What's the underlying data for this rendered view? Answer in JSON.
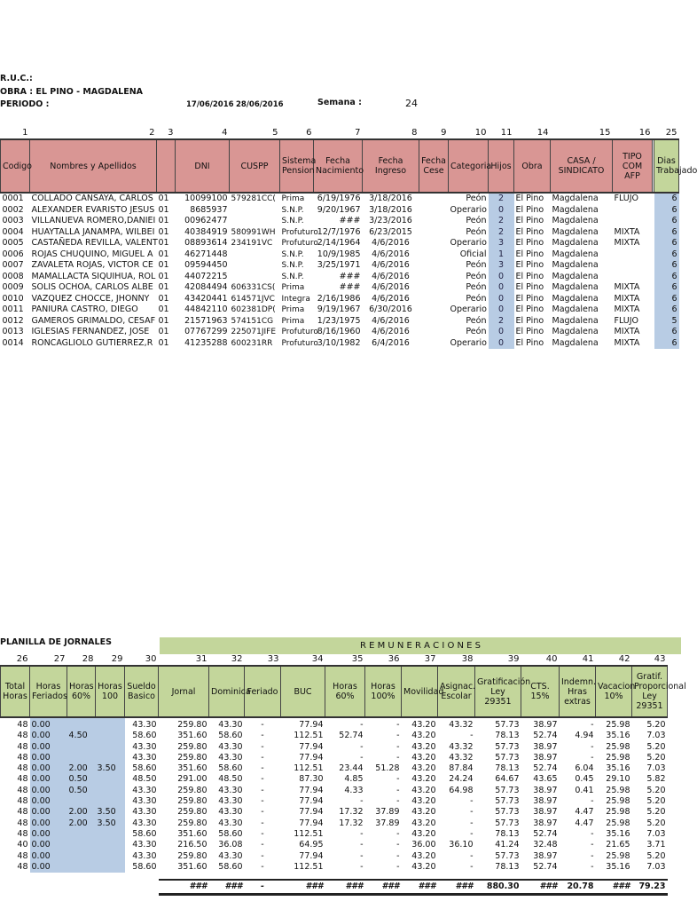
{
  "header": {
    "ruc_label": "R.U.C.:",
    "obra_label": "OBRA  : EL PINO - MAGDALENA",
    "periodo_label": "PERIODO :",
    "fecha_inicio": "17/06/2016",
    "fecha_fin": "28/06/2016",
    "semana_label": "Semana :",
    "semana_value": "24"
  },
  "top": {
    "col_numbers": [
      "1",
      "2",
      "3",
      "4",
      "5",
      "6",
      "7",
      "8",
      "9",
      "10",
      "11",
      "14",
      "15",
      "16",
      "",
      "25"
    ],
    "headers": [
      "Codigo",
      "Nombres y Apellidos",
      "",
      "DNI",
      "CUSPP",
      "Sistema Pension",
      "Fecha Nacimiento",
      "Fecha Ingreso",
      "Fecha Cese",
      "Categoria",
      "Hijos",
      "Obra",
      "CASA / SINDICATO",
      "TIPO COM AFP",
      "",
      "Dias Trabajado"
    ],
    "rows": [
      [
        "0001",
        "COLLADO CANSAYA, CARLOS",
        "01",
        "10099100",
        "579281CC(",
        "Prima",
        "6/19/1976",
        "3/18/2016",
        "",
        "Peón",
        "2",
        "El Pino",
        "Magdalena",
        "FLUJO",
        "",
        "6"
      ],
      [
        "0002",
        "ALEXANDER EVARISTO JESUS",
        "01",
        "8685937",
        "",
        "S.N.P.",
        "9/20/1967",
        "3/18/2016",
        "",
        "Operario",
        "0",
        "El Pino",
        "Magdalena",
        "",
        "",
        "6"
      ],
      [
        "0003",
        "VILLANUEVA ROMERO,DANIEI",
        "01",
        "00962477",
        "",
        "S.N.P.",
        "###",
        "3/23/2016",
        "",
        "Peón",
        "2",
        "El Pino",
        "Magdalena",
        "",
        "",
        "6"
      ],
      [
        "0004",
        "HUAYTALLA JANAMPA, WILBEI",
        "01",
        "40384919",
        "580991WH",
        "Profuturo",
        "12/7/1976",
        "6/23/2015",
        "",
        "Peón",
        "2",
        "El Pino",
        "Magdalena",
        "MIXTA",
        "",
        "6"
      ],
      [
        "0005",
        "CASTAÑEDA REVILLA, VALENT",
        "01",
        "08893614",
        "234191VC",
        "Profuturo",
        "2/14/1964",
        "4/6/2016",
        "",
        "Operario",
        "3",
        "El Pino",
        "Magdalena",
        "MIXTA",
        "",
        "6"
      ],
      [
        "0006",
        "ROJAS CHUQUINO, MIGUEL A",
        "01",
        "46271448",
        "",
        "S.N.P.",
        "10/9/1985",
        "4/6/2016",
        "",
        "Oficial",
        "1",
        "El Pino",
        "Magdalena",
        "",
        "",
        "6"
      ],
      [
        "0007",
        "ZAVALETA ROJAS, VICTOR CE",
        "01",
        "09594450",
        "",
        "S.N.P.",
        "3/25/1971",
        "4/6/2016",
        "",
        "Peón",
        "3",
        "El Pino",
        "Magdalena",
        "",
        "",
        "6"
      ],
      [
        "0008",
        "MAMALLACTA SIQUIHUA, ROL",
        "01",
        "44072215",
        "",
        "S.N.P.",
        "###",
        "4/6/2016",
        "",
        "Peón",
        "0",
        "El Pino",
        "Magdalena",
        "",
        "",
        "6"
      ],
      [
        "0009",
        "SOLIS OCHOA, CARLOS ALBE",
        "01",
        "42084494",
        "606331CS(",
        "Prima",
        "###",
        "4/6/2016",
        "",
        "Peón",
        "0",
        "El Pino",
        "Magdalena",
        "MIXTA",
        "",
        "6"
      ],
      [
        "0010",
        "VAZQUEZ CHOCCE, JHONNY",
        "01",
        "43420441",
        "614571JVC",
        "Integra",
        "2/16/1986",
        "4/6/2016",
        "",
        "Peón",
        "0",
        "El Pino",
        "Magdalena",
        "MIXTA",
        "",
        "6"
      ],
      [
        "0011",
        "PANIURA CASTRO, DIEGO",
        "01",
        "44842110",
        "602381DP(",
        "Prima",
        "9/19/1967",
        "6/30/2016",
        "",
        "Operario",
        "0",
        "El Pino",
        "Magdalena",
        "MIXTA",
        "",
        "6"
      ],
      [
        "0012",
        "GAMEROS GRIMALDO, CESAF",
        "01",
        "21571963",
        "574151CG",
        "Prima",
        "1/23/1975",
        "4/6/2016",
        "",
        "Peón",
        "2",
        "El Pino",
        "Magdalena",
        "FLUJO",
        "",
        "5"
      ],
      [
        "0013",
        "IGLESIAS FERNANDEZ, JOSE",
        "01",
        "07767299",
        "225071JIFE",
        "Profuturo",
        "8/16/1960",
        "4/6/2016",
        "",
        "Peón",
        "0",
        "El Pino",
        "Magdalena",
        "MIXTA",
        "",
        "6"
      ],
      [
        "0014",
        "RONCAGLIOLO GUTIERREZ,R",
        "01",
        "41235288",
        "600231RR",
        "Profuturo",
        "3/10/1982",
        "6/4/2016",
        "",
        "Operario",
        "0",
        "El Pino",
        "Magdalena",
        "MIXTA",
        "",
        "6"
      ]
    ]
  },
  "bottom": {
    "title": "PLANILLA DE JORNALES",
    "group_label": "R E M U N E R A C I O N E S",
    "col_numbers": [
      "26",
      "27",
      "28",
      "29",
      "30",
      "31",
      "32",
      "33",
      "34",
      "35",
      "36",
      "37",
      "38",
      "39",
      "40",
      "41",
      "42",
      "43"
    ],
    "headers": [
      "Total Horas",
      "Horas Feriados",
      "Horas 60%",
      "Horas 100",
      "Sueldo Basico",
      "Jornal",
      "Dominica",
      "Feriado",
      "BUC",
      "Horas 60%",
      "Horas 100%",
      "Movilidad",
      "Asignac. Escolar",
      "Gratificación Ley 29351",
      "CTS. 15%",
      "Indemn. Hras extras",
      "Vacacion 10%",
      "Gratif. Proporcional Ley 29351"
    ],
    "rows": [
      [
        "48",
        "0.00",
        "",
        "",
        "43.30",
        "259.80",
        "43.30",
        "-",
        "77.94",
        "-",
        "-",
        "43.20",
        "43.32",
        "57.73",
        "38.97",
        "-",
        "25.98",
        "5.20"
      ],
      [
        "48",
        "0.00",
        "4.50",
        "",
        "58.60",
        "351.60",
        "58.60",
        "-",
        "112.51",
        "52.74",
        "-",
        "43.20",
        "-",
        "78.13",
        "52.74",
        "4.94",
        "35.16",
        "7.03"
      ],
      [
        "48",
        "0.00",
        "",
        "",
        "43.30",
        "259.80",
        "43.30",
        "-",
        "77.94",
        "-",
        "-",
        "43.20",
        "43.32",
        "57.73",
        "38.97",
        "-",
        "25.98",
        "5.20"
      ],
      [
        "48",
        "0.00",
        "",
        "",
        "43.30",
        "259.80",
        "43.30",
        "-",
        "77.94",
        "-",
        "-",
        "43.20",
        "43.32",
        "57.73",
        "38.97",
        "-",
        "25.98",
        "5.20"
      ],
      [
        "48",
        "0.00",
        "2.00",
        "3.50",
        "58.60",
        "351.60",
        "58.60",
        "-",
        "112.51",
        "23.44",
        "51.28",
        "43.20",
        "87.84",
        "78.13",
        "52.74",
        "6.04",
        "35.16",
        "7.03"
      ],
      [
        "48",
        "0.00",
        "0.50",
        "",
        "48.50",
        "291.00",
        "48.50",
        "-",
        "87.30",
        "4.85",
        "-",
        "43.20",
        "24.24",
        "64.67",
        "43.65",
        "0.45",
        "29.10",
        "5.82"
      ],
      [
        "48",
        "0.00",
        "0.50",
        "",
        "43.30",
        "259.80",
        "43.30",
        "-",
        "77.94",
        "4.33",
        "-",
        "43.20",
        "64.98",
        "57.73",
        "38.97",
        "0.41",
        "25.98",
        "5.20"
      ],
      [
        "48",
        "0.00",
        "",
        "",
        "43.30",
        "259.80",
        "43.30",
        "-",
        "77.94",
        "-",
        "-",
        "43.20",
        "-",
        "57.73",
        "38.97",
        "-",
        "25.98",
        "5.20"
      ],
      [
        "48",
        "0.00",
        "2.00",
        "3.50",
        "43.30",
        "259.80",
        "43.30",
        "-",
        "77.94",
        "17.32",
        "37.89",
        "43.20",
        "-",
        "57.73",
        "38.97",
        "4.47",
        "25.98",
        "5.20"
      ],
      [
        "48",
        "0.00",
        "2.00",
        "3.50",
        "43.30",
        "259.80",
        "43.30",
        "-",
        "77.94",
        "17.32",
        "37.89",
        "43.20",
        "-",
        "57.73",
        "38.97",
        "4.47",
        "25.98",
        "5.20"
      ],
      [
        "48",
        "0.00",
        "",
        "",
        "58.60",
        "351.60",
        "58.60",
        "-",
        "112.51",
        "-",
        "-",
        "43.20",
        "-",
        "78.13",
        "52.74",
        "-",
        "35.16",
        "7.03"
      ],
      [
        "40",
        "0.00",
        "",
        "",
        "43.30",
        "216.50",
        "36.08",
        "-",
        "64.95",
        "-",
        "-",
        "36.00",
        "36.10",
        "41.24",
        "32.48",
        "-",
        "21.65",
        "3.71"
      ],
      [
        "48",
        "0.00",
        "",
        "",
        "43.30",
        "259.80",
        "43.30",
        "-",
        "77.94",
        "-",
        "-",
        "43.20",
        "-",
        "57.73",
        "38.97",
        "-",
        "25.98",
        "5.20"
      ],
      [
        "48",
        "0.00",
        "",
        "",
        "58.60",
        "351.60",
        "58.60",
        "-",
        "112.51",
        "-",
        "-",
        "43.20",
        "-",
        "78.13",
        "52.74",
        "-",
        "35.16",
        "7.03"
      ]
    ],
    "totals": [
      "",
      "",
      "",
      "",
      "",
      "###",
      "###",
      "-",
      "###",
      "###",
      "###",
      "###",
      "###",
      "880.30",
      "###",
      "20.78",
      "###",
      "79.23"
    ]
  }
}
